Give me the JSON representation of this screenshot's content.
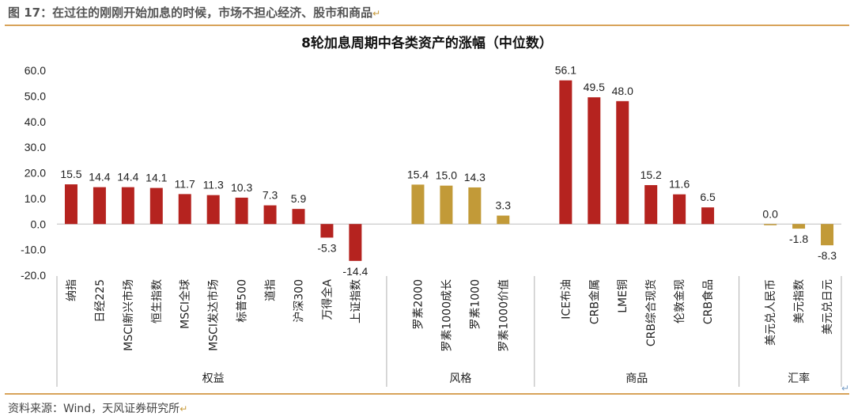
{
  "figure": {
    "title": "图 17：在过往的刚刚开始加息的时候，市场不担心经济、股市和商品",
    "source": "资料来源：Wind，天风证券研究所",
    "return_mark": "↵"
  },
  "colors": {
    "red_series": "#b5231f",
    "gold_series": "#c29a38",
    "rule": "#d8a35a",
    "divider": "#b0b0b0"
  },
  "chart_data": {
    "type": "bar",
    "title": "8轮加息周期中各类资产的涨幅（中位数）",
    "xlabel": "",
    "ylabel": "",
    "ylim": [
      -20,
      60
    ],
    "yticks": [
      "60.0",
      "50.0",
      "40.0",
      "30.0",
      "20.0",
      "10.0",
      "0.0",
      "-10.0",
      "-20.0"
    ],
    "grid": false,
    "legend": "none",
    "groups": [
      {
        "name": "权益",
        "color": "#b5231f",
        "categories": [
          "纳指",
          "日经225",
          "MSCI新兴市场",
          "恒生指数",
          "MSCI全球",
          "MSCI发达市场",
          "标普500",
          "道指",
          "沪深300",
          "万得全A",
          "上证指数"
        ],
        "values": [
          15.5,
          14.4,
          14.4,
          14.1,
          11.7,
          11.3,
          10.3,
          7.3,
          5.9,
          -5.3,
          -14.4
        ],
        "labels": [
          "15.5",
          "14.4",
          "14.4",
          "14.1",
          "11.7",
          "11.3",
          "10.3",
          "7.3",
          "5.9",
          "-5.3",
          "-14.4"
        ]
      },
      {
        "name": "风格",
        "color": "#c29a38",
        "categories": [
          "罗素2000",
          "罗素1000成长",
          "罗素1000",
          "罗素1000价值"
        ],
        "values": [
          15.4,
          15.0,
          14.3,
          3.3
        ],
        "labels": [
          "15.4",
          "15.0",
          "14.3",
          "3.3"
        ]
      },
      {
        "name": "商品",
        "color": "#b5231f",
        "categories": [
          "ICE布油",
          "CRB金属",
          "LME铜",
          "CRB综合现货",
          "伦敦金现",
          "CRB食品"
        ],
        "values": [
          56.1,
          49.5,
          48.0,
          15.2,
          11.6,
          6.5
        ],
        "labels": [
          "56.1",
          "49.5",
          "48.0",
          "15.2",
          "11.6",
          "6.5"
        ]
      },
      {
        "name": "汇率",
        "color": "#c29a38",
        "categories": [
          "美元兑人民币",
          "美元指数",
          "美元兑日元"
        ],
        "values": [
          0.0,
          -1.8,
          -8.3
        ],
        "labels": [
          "0.0",
          "-1.8",
          "-8.3"
        ]
      }
    ]
  }
}
